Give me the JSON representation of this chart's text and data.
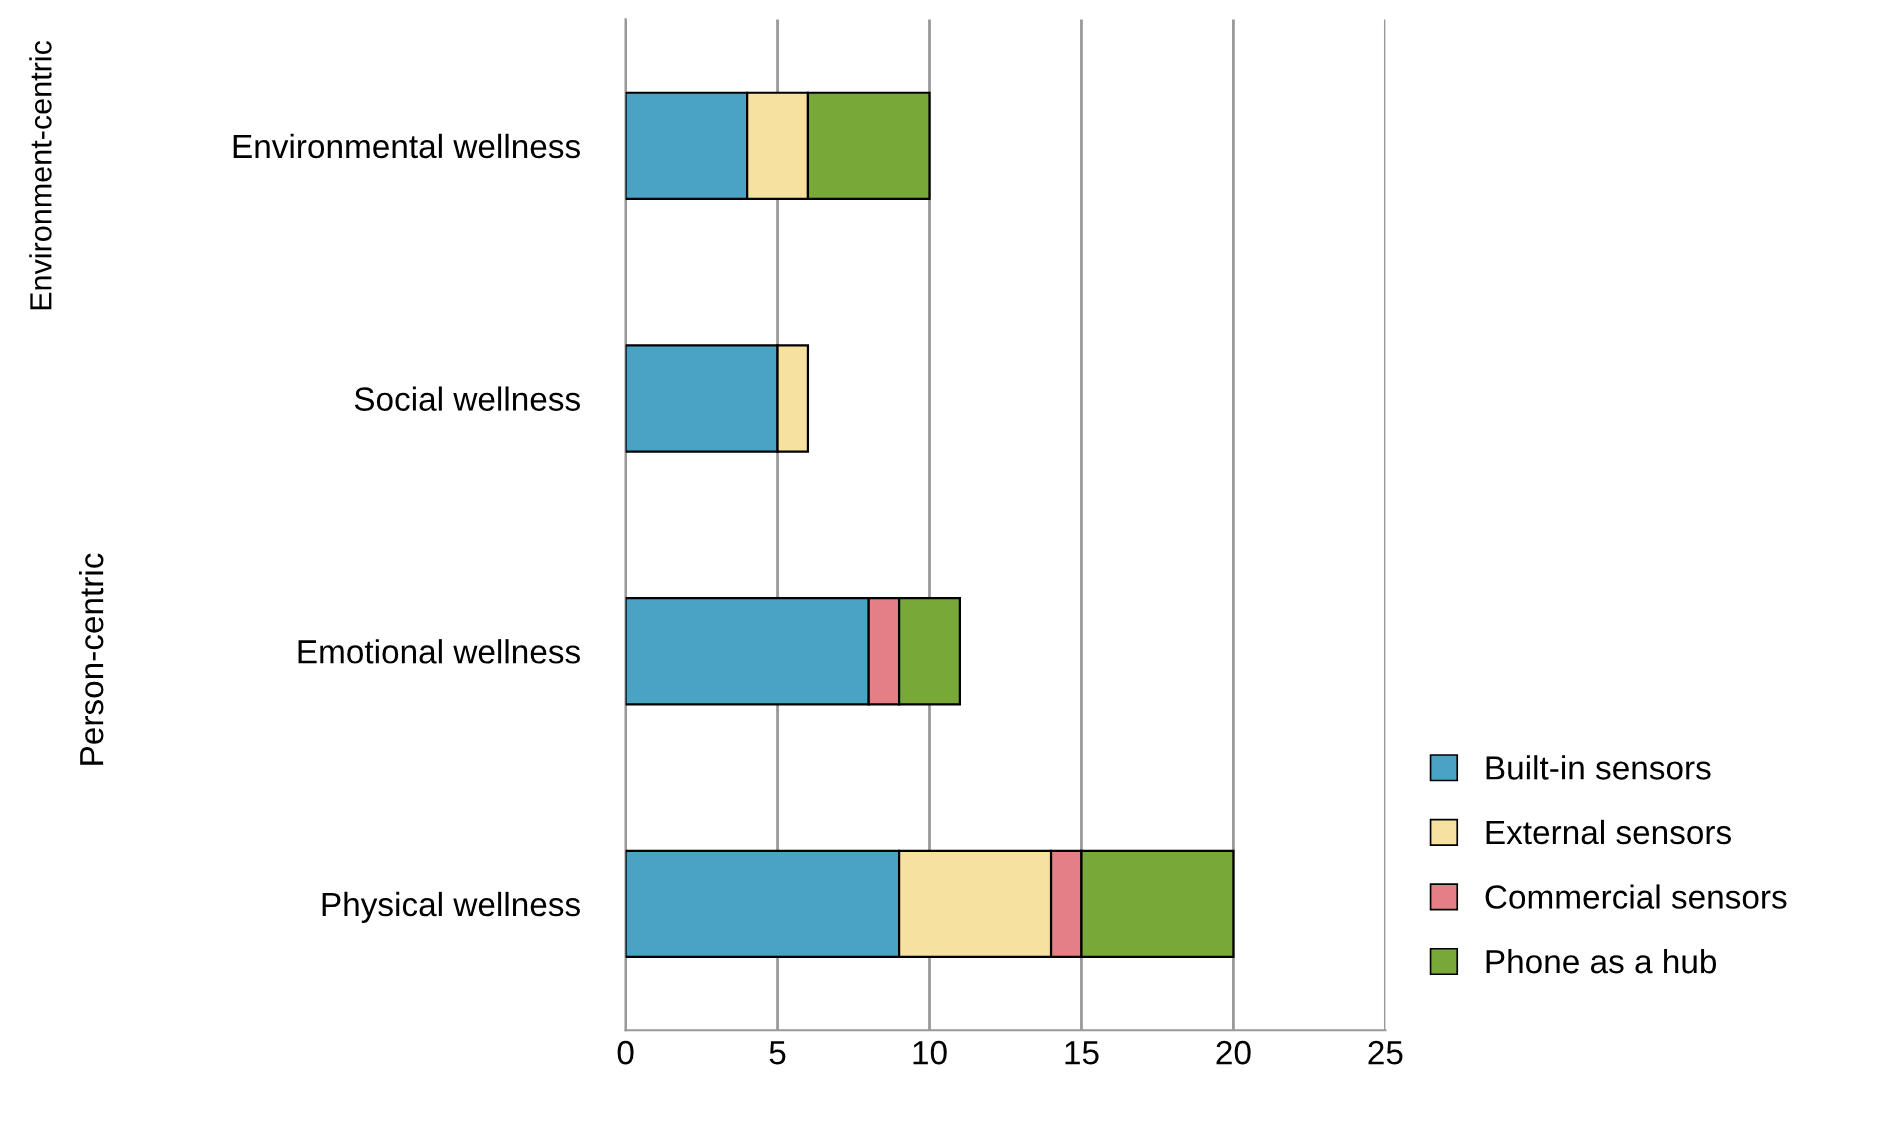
{
  "chart_data": {
    "type": "bar",
    "orientation": "horizontal",
    "stacked": true,
    "categories": [
      "Environmental wellness",
      "Social wellness",
      "Emotional wellness",
      "Physical wellness"
    ],
    "series": [
      {
        "name": "Built-in sensors",
        "color": "#4ba3c3",
        "values": [
          4,
          5,
          8,
          9
        ]
      },
      {
        "name": "External sensors",
        "color": "#f7e1a0",
        "values": [
          2,
          1,
          0,
          5
        ]
      },
      {
        "name": "Commercial sensors",
        "color": "#e57f86",
        "values": [
          0,
          0,
          1,
          1
        ]
      },
      {
        "name": "Phone as a hub",
        "color": "#78a938",
        "values": [
          4,
          0,
          2,
          5
        ]
      }
    ],
    "xlim": [
      0,
      25
    ],
    "xticks": [
      0,
      5,
      10,
      15,
      20,
      25
    ],
    "grid": "x",
    "legend": "right",
    "annotations": [
      "Environment-centric",
      "Person-centric"
    ]
  }
}
